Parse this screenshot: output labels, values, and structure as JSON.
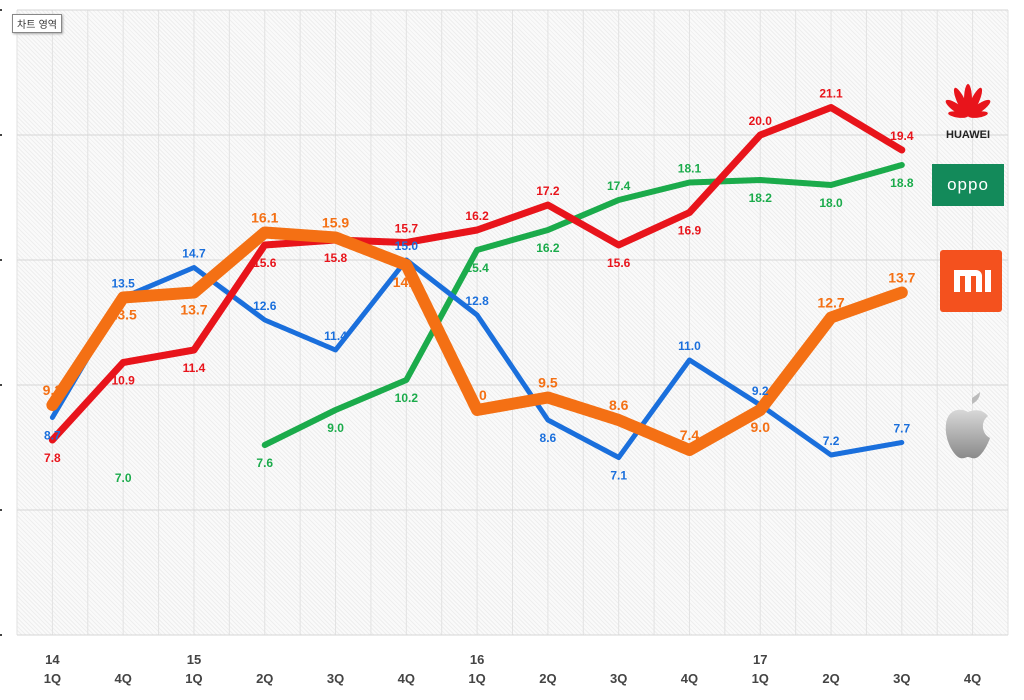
{
  "tooltip": "차트 영역",
  "chart_data": {
    "type": "line",
    "categories": [
      "1Q",
      "4Q",
      "1Q",
      "2Q",
      "3Q",
      "4Q",
      "1Q",
      "2Q",
      "3Q",
      "4Q",
      "1Q",
      "2Q",
      "3Q",
      "4Q"
    ],
    "year_labels": [
      "14",
      "",
      "15",
      "",
      "",
      "",
      "16",
      "",
      "",
      "",
      "17",
      "",
      "",
      ""
    ],
    "ylim": [
      0,
      25
    ],
    "grid": true,
    "series": [
      {
        "name": "OPPO",
        "color": "#1bab4b",
        "values": [
          null,
          7.0,
          null,
          7.6,
          9.0,
          10.2,
          15.4,
          16.2,
          17.4,
          18.1,
          18.2,
          18.0,
          18.8,
          null
        ]
      },
      {
        "name": "Apple",
        "color": "#1a6fdc",
        "values": [
          8.7,
          13.5,
          14.7,
          12.6,
          11.4,
          15.0,
          12.8,
          8.6,
          7.1,
          11.0,
          9.2,
          7.2,
          7.7,
          null
        ]
      },
      {
        "name": "HUAWEI",
        "color": "#e8141b",
        "values": [
          7.8,
          10.9,
          11.4,
          15.6,
          15.8,
          15.7,
          16.2,
          17.2,
          15.6,
          16.9,
          20.0,
          21.1,
          19.4,
          null
        ]
      },
      {
        "name": "MI",
        "color": "#f47014",
        "values": [
          9.2,
          13.5,
          13.7,
          16.1,
          15.9,
          14.8,
          9.0,
          9.5,
          8.6,
          7.4,
          9.0,
          12.7,
          13.7,
          null
        ]
      }
    ]
  },
  "legend_logos": [
    {
      "name": "HUAWEI",
      "text": "HUAWEI",
      "color": "#e8141b"
    },
    {
      "name": "OPPO",
      "text": "oppo",
      "color": "#138a5a"
    },
    {
      "name": "MI",
      "text": "mi",
      "color": "#f4511e"
    },
    {
      "name": "Apple",
      "text": "",
      "color": "#999999"
    }
  ]
}
